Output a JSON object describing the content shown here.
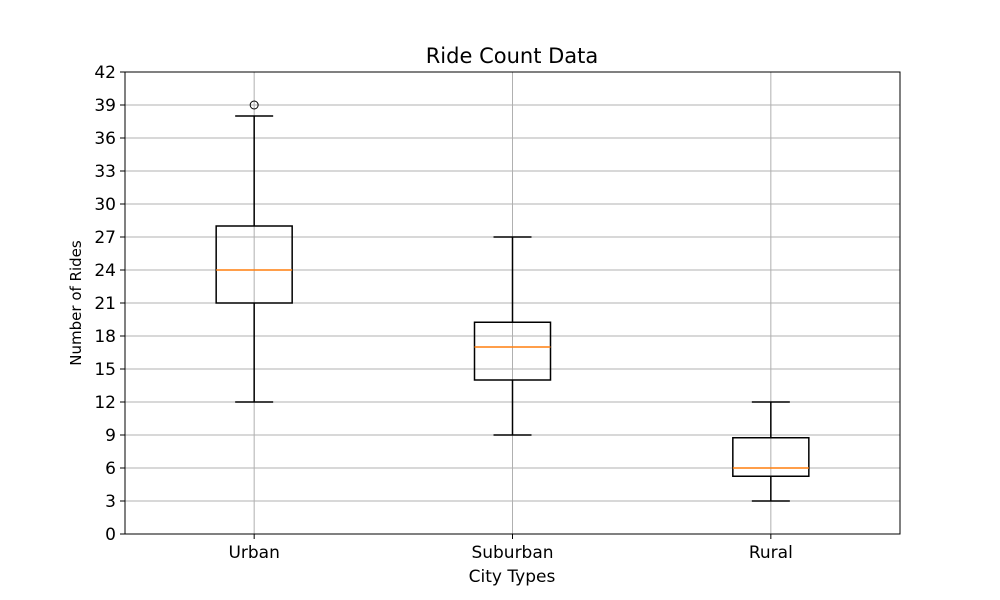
{
  "chart_data": {
    "type": "box",
    "title": "Ride Count Data",
    "xlabel": "City Types",
    "ylabel": "Number of Rides",
    "categories": [
      "Urban",
      "Suburban",
      "Rural"
    ],
    "ylim": [
      0,
      42
    ],
    "yticks": [
      0,
      3,
      6,
      9,
      12,
      15,
      18,
      21,
      24,
      27,
      30,
      33,
      36,
      39,
      42
    ],
    "ytick_labels": [
      "0",
      "3",
      "6",
      "9",
      "12",
      "15",
      "18",
      "21",
      "24",
      "27",
      "30",
      "33",
      "36",
      "39",
      "42"
    ],
    "grid": true,
    "boxes": [
      {
        "category": "Urban",
        "whisker_low": 12,
        "q1": 21,
        "median": 24,
        "q3": 28,
        "whisker_high": 38,
        "outliers": [
          39
        ]
      },
      {
        "category": "Suburban",
        "whisker_low": 9,
        "q1": 14,
        "median": 17,
        "q3": 19.25,
        "whisker_high": 27,
        "outliers": []
      },
      {
        "category": "Rural",
        "whisker_low": 3,
        "q1": 5.25,
        "median": 6,
        "q3": 8.75,
        "whisker_high": 12,
        "outliers": []
      }
    ],
    "colors": {
      "box": "#000000",
      "median": "#ff7f0e",
      "grid": "#b0b0b0",
      "outlier": "#000000"
    }
  }
}
